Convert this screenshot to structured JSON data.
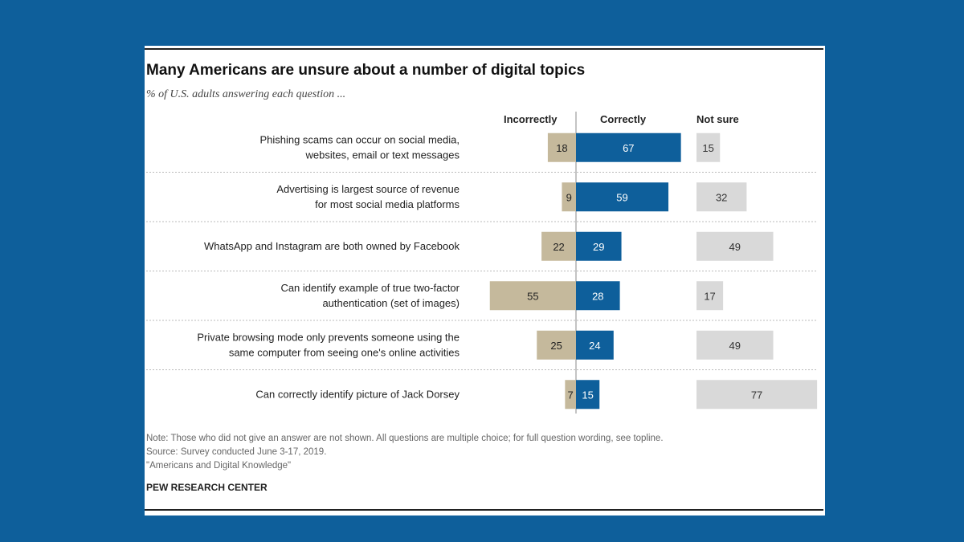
{
  "header": {
    "title": "Many Americans are unsure about a number of digital topics",
    "subtitle": "% of U.S. adults answering each question ..."
  },
  "columns": {
    "incorrectly": "Incorrectly",
    "correctly": "Correctly",
    "not_sure": "Not sure"
  },
  "colors": {
    "incorrect": "#c5b99c",
    "correct": "#0e5f9b",
    "not_sure": "#d9d9d9",
    "background": "#0e5f9b"
  },
  "chart_data": {
    "type": "bar",
    "categories": [
      [
        "Phishing scams can occur on social media,",
        "websites, email or text messages"
      ],
      [
        "Advertising is largest source of revenue",
        "for most social media platforms"
      ],
      [
        "WhatsApp and Instagram are both owned by Facebook"
      ],
      [
        "Can identify example of true two-factor",
        "authentication (set of images)"
      ],
      [
        "Private browsing mode only prevents someone using the",
        "same computer from seeing one's online activities"
      ],
      [
        "Can correctly identify picture of Jack Dorsey"
      ]
    ],
    "series": [
      {
        "name": "Incorrectly",
        "values": [
          18,
          9,
          22,
          55,
          25,
          7
        ]
      },
      {
        "name": "Correctly",
        "values": [
          67,
          59,
          29,
          28,
          24,
          15
        ]
      },
      {
        "name": "Not sure",
        "values": [
          15,
          32,
          49,
          17,
          49,
          77
        ]
      }
    ],
    "layout": "diverging stacked bar with separate not-sure column",
    "grid": false,
    "legend": "column headers above bars"
  },
  "footer": {
    "note": "Note: Those who did not give an answer are not shown. All questions are multiple choice; for full question wording, see topline.",
    "source": "Source: Survey conducted June 3-17, 2019.",
    "report": "\"Americans and Digital Knowledge\"",
    "brand": "PEW RESEARCH CENTER"
  }
}
